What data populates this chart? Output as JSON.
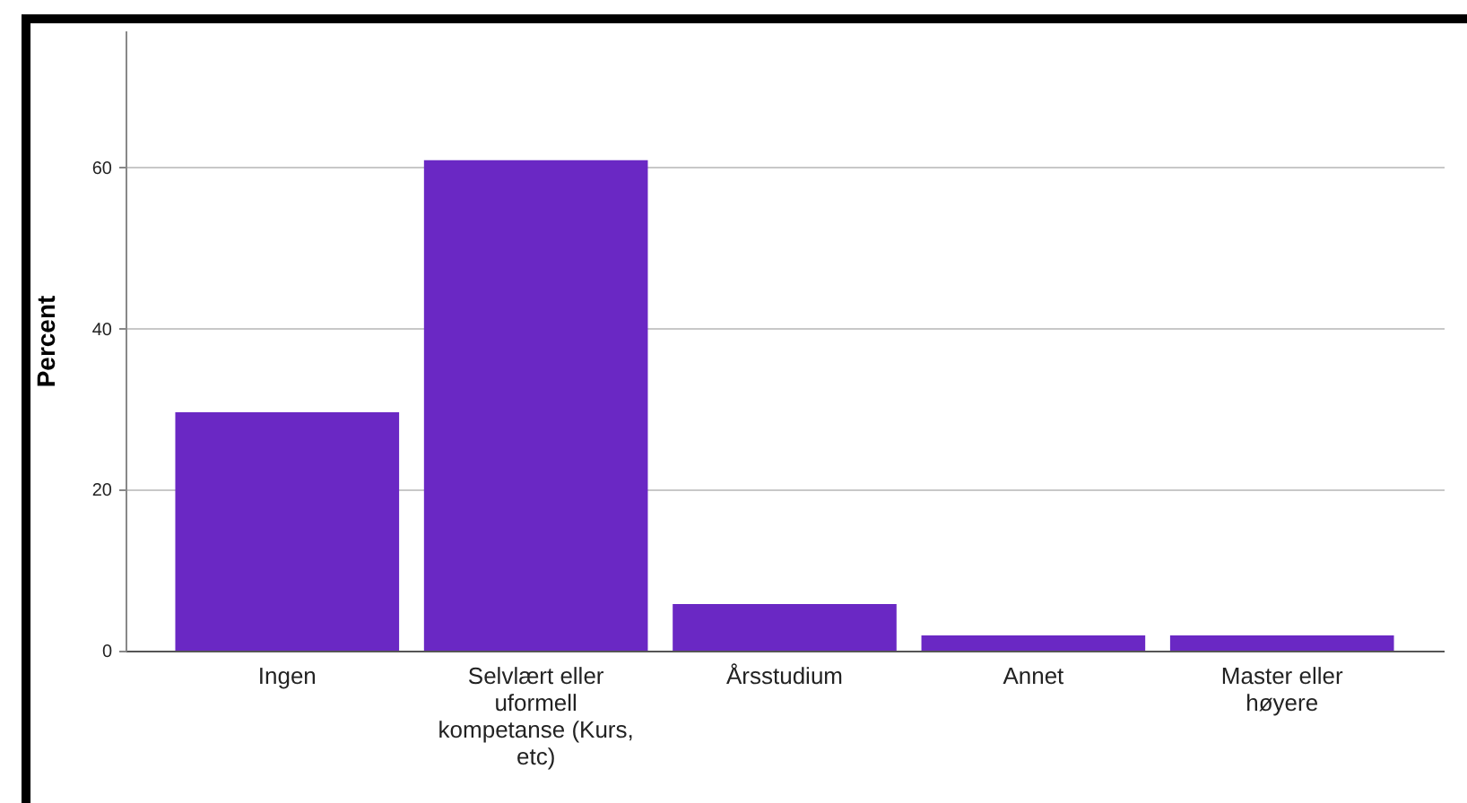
{
  "chart_data": {
    "type": "bar",
    "ylabel": "Percent",
    "categories": [
      "Ingen",
      "Selvlært eller uformell kompetanse (Kurs, etc)",
      "Årsstudium",
      "Annet",
      "Master eller høyere"
    ],
    "values": [
      29.6,
      60.9,
      5.8,
      1.9,
      1.9
    ],
    "color": "#6a28c4",
    "ylim": [
      0,
      77
    ],
    "yticks": [
      0,
      20,
      40,
      60
    ],
    "grid": "y"
  }
}
